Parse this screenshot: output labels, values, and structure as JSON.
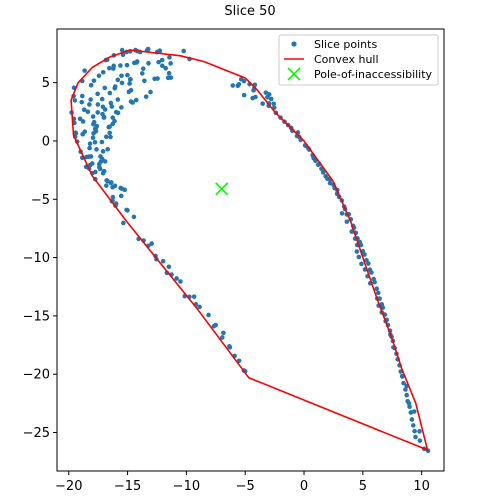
{
  "chart_data": {
    "type": "scatter",
    "title": "Slice 50",
    "xlabel": "",
    "ylabel": "",
    "xlim": [
      -21.0,
      11.9
    ],
    "ylim": [
      -28.3,
      9.6
    ],
    "xticks": [
      -20,
      -15,
      -10,
      -5,
      0,
      5,
      10
    ],
    "yticks": [
      5,
      0,
      -5,
      -10,
      -15,
      -20,
      -25
    ],
    "grid": false,
    "legend_position": "top-right",
    "legend": [
      "Slice points",
      "Convex hull",
      "Pole-of-inaccessibility"
    ],
    "colors": {
      "points": "#1f77b4",
      "hull": "#ff0000",
      "pole": "#00ff00"
    },
    "hull": [
      [
        -14.8,
        7.8
      ],
      [
        -10.5,
        7.3
      ],
      [
        -8.5,
        6.8
      ],
      [
        -5.0,
        5.4
      ],
      [
        -4.0,
        4.4
      ],
      [
        -2.5,
        2.5
      ],
      [
        0.0,
        0.0
      ],
      [
        2.5,
        -3.5
      ],
      [
        4.0,
        -7.0
      ],
      [
        5.0,
        -10.0
      ],
      [
        6.2,
        -13.5
      ],
      [
        7.5,
        -17.0
      ],
      [
        8.3,
        -19.5
      ],
      [
        9.5,
        -22.5
      ],
      [
        10.0,
        -24.5
      ],
      [
        10.5,
        -26.5
      ],
      [
        -4.7,
        -20.3
      ],
      [
        -9.0,
        -14.5
      ],
      [
        -15.0,
        -7.0
      ],
      [
        -18.0,
        -3.0
      ],
      [
        -19.6,
        0.5
      ],
      [
        -19.8,
        3.5
      ],
      [
        -19.2,
        5.0
      ],
      [
        -18.0,
        6.3
      ],
      [
        -16.5,
        7.2
      ],
      [
        -14.8,
        7.8
      ]
    ],
    "pole": [
      -7.0,
      -4.1
    ],
    "point_rows": [
      [
        [
          -13.25,
          7.85
        ],
        [
          -13.25,
          7.88
        ],
        [
          -14.33,
          7.79
        ],
        [
          -12.26,
          7.74
        ],
        [
          -15.46,
          7.79
        ],
        [
          -14.18,
          7.7
        ],
        [
          -13.34,
          7.78
        ],
        [
          -12.27,
          7.67
        ],
        [
          -13.94,
          7.63
        ],
        [
          -14.77,
          7.68
        ],
        [
          -15.08,
          7.63
        ],
        [
          -12.41,
          7.66
        ],
        [
          -12.5,
          7.61
        ],
        [
          -16.16,
          7.34
        ],
        [
          -15.39,
          7.39
        ],
        [
          -16.73,
          6.96
        ],
        [
          -16.84,
          6.94
        ]
      ],
      [
        [
          -12.06,
          6.94
        ],
        [
          -12.36,
          6.76
        ],
        [
          -13.22,
          6.66
        ],
        [
          -14.18,
          6.81
        ],
        [
          -15.05,
          6.5
        ],
        [
          -14.43,
          6.7
        ],
        [
          -15.61,
          6.47
        ],
        [
          -16.18,
          6.44
        ],
        [
          -17.07,
          5.89
        ],
        [
          -16.55,
          6.24
        ],
        [
          -14.24,
          6.73
        ],
        [
          -17.43,
          5.59
        ],
        [
          -16.21,
          6.21
        ],
        [
          -17.86,
          5.17
        ],
        [
          -18.1,
          4.78
        ]
      ],
      [
        [
          -11.32,
          5.43
        ],
        [
          -12.45,
          5.35
        ],
        [
          -12.7,
          5.33
        ],
        [
          -13.57,
          5.16
        ],
        [
          -14.75,
          5.28
        ],
        [
          -14.78,
          5.28
        ],
        [
          -14.83,
          4.93
        ],
        [
          -15.47,
          4.98
        ],
        [
          -16.05,
          4.67
        ],
        [
          -16.09,
          4.52
        ],
        [
          -16.51,
          4.11
        ],
        [
          -17.16,
          3.59
        ],
        [
          -17.53,
          3.13
        ],
        [
          -17.54,
          2.45
        ],
        [
          -17.93,
          2.09
        ],
        [
          -17.91,
          1.43
        ],
        [
          -17.76,
          1.02
        ],
        [
          -17.69,
          0.83
        ]
      ],
      [
        [
          -13.05,
          4.19
        ],
        [
          -13.42,
          3.8
        ],
        [
          -14.26,
          3.51
        ],
        [
          -14.57,
          3.3
        ],
        [
          -14.71,
          3.38
        ],
        [
          -15.53,
          2.88
        ],
        [
          -15.81,
          2.41
        ],
        [
          -16.11,
          1.7
        ],
        [
          -16.26,
          1.46
        ],
        [
          -16.6,
          1.18
        ],
        [
          -16.45,
          0.34
        ],
        [
          -16.81,
          0.36
        ],
        [
          -16.69,
          -0.71
        ],
        [
          -17.3,
          -1.33
        ],
        [
          -17.41,
          -1.99
        ],
        [
          -17.33,
          -2.39
        ]
      ],
      [
        [
          -11.44,
          7.17
        ],
        [
          -11.34,
          6.65
        ],
        [
          -12.05,
          6.45
        ],
        [
          -11.76,
          6.24
        ],
        [
          -13.67,
          6.2
        ],
        [
          -13.75,
          5.79
        ],
        [
          -15.01,
          5.65
        ],
        [
          -15.52,
          5.59
        ],
        [
          -15.83,
          5.24
        ],
        [
          -16.94,
          4.55
        ],
        [
          -17.55,
          4.04
        ],
        [
          -18.14,
          3.55
        ],
        [
          -18.25,
          3.13
        ],
        [
          -18.69,
          2.68
        ],
        [
          -19.04,
          1.9
        ],
        [
          -18.82,
          0.58
        ],
        [
          -19.4,
          0.65
        ],
        [
          -19.28,
          -0.06
        ],
        [
          -18.99,
          -0.92
        ],
        [
          -18.31,
          -1.35
        ]
      ],
      [
        [
          -14.71,
          4.35
        ],
        [
          -14.89,
          4.21
        ],
        [
          -15.83,
          3.55
        ],
        [
          -16.42,
          3.26
        ],
        [
          -16.34,
          2.95
        ],
        [
          -16.91,
          2.7
        ],
        [
          -17.01,
          2.0
        ],
        [
          -17.0,
          2.04
        ],
        [
          -17.61,
          1.27
        ],
        [
          -17.89,
          0.66
        ],
        [
          -17.77,
          -0.11
        ],
        [
          -18.19,
          -0.23
        ],
        [
          -18.11,
          -1.33
        ],
        [
          -18.0,
          -1.93
        ],
        [
          -18.2,
          -2.08
        ],
        [
          -17.4,
          -2.25
        ]
      ],
      [
        [
          -18.65,
          6.03
        ],
        [
          -18.85,
          5.14
        ],
        [
          -19.55,
          4.56
        ],
        [
          -19.59,
          3.84
        ],
        [
          -19.48,
          3.48
        ],
        [
          -19.76,
          2.44
        ],
        [
          -19.56,
          1.89
        ],
        [
          -19.52,
          1.55
        ],
        [
          -19.41,
          0.71
        ],
        [
          -19.45,
          0.36
        ],
        [
          -18.85,
          -1.44
        ],
        [
          -18.52,
          -2.22
        ],
        [
          -17.99,
          -2.76
        ],
        [
          -17.74,
          -3.28
        ]
      ],
      [
        [
          -15.97,
          2.47
        ],
        [
          -16.26,
          2.0
        ],
        [
          -16.53,
          1.22
        ],
        [
          -16.52,
          0.69
        ],
        [
          -17.18,
          -0.09
        ],
        [
          -17.08,
          -0.89
        ],
        [
          -17.16,
          -1.54
        ],
        [
          -16.91,
          -1.75
        ],
        [
          -16.99,
          -2.59
        ],
        [
          -16.78,
          -3.38
        ],
        [
          -16.69,
          -3.45
        ],
        [
          -16.27,
          -3.97
        ],
        [
          -16.25,
          -4.82
        ],
        [
          -16.34,
          -5.17
        ],
        [
          -15.97,
          -5.37
        ],
        [
          -16.03,
          -5.56
        ]
      ],
      [
        [
          -17.1,
          2.93
        ],
        [
          -17.13,
          2.31
        ],
        [
          -17.84,
          1.61
        ],
        [
          -17.71,
          1.06
        ],
        [
          -17.94,
          0.28
        ],
        [
          -17.64,
          -0.72
        ],
        [
          -17.28,
          -1.77
        ],
        [
          -17.08,
          -2.77
        ],
        [
          -16.42,
          -3.6
        ]
      ],
      [
        [
          -18.85,
          3.85
        ],
        [
          -18.9,
          3.33
        ],
        [
          -18.38,
          2.51
        ],
        [
          -18.78,
          1.67
        ],
        [
          -18.64,
          0.8
        ],
        [
          -18.23,
          -0.61
        ],
        [
          -18.49,
          -1.38
        ],
        [
          -18.27,
          -2.36
        ],
        [
          -17.74,
          -2.66
        ],
        [
          -16.81,
          -3.83
        ]
      ],
      [
        [
          -15.36,
          -7.03
        ],
        [
          -15.08,
          -5.91
        ],
        [
          -15.01,
          -5.95
        ],
        [
          -14.46,
          -6.51
        ],
        [
          -14.06,
          -8.4
        ],
        [
          -13.64,
          -8.54
        ],
        [
          -13.24,
          -8.99
        ],
        [
          -12.95,
          -8.8
        ],
        [
          -12.62,
          -9.86
        ],
        [
          -12.55,
          -10.14
        ],
        [
          -11.98,
          -10.31
        ],
        [
          -11.66,
          -11.31
        ],
        [
          -11.49,
          -10.79
        ],
        [
          -11.26,
          -11.46
        ],
        [
          -10.83,
          -11.79
        ],
        [
          -10.51,
          -12.05
        ],
        [
          -10.14,
          -13.31
        ],
        [
          -9.74,
          -13.36
        ],
        [
          -9.34,
          -13.35
        ],
        [
          -9.19,
          -14.01
        ],
        [
          -8.88,
          -14.23
        ],
        [
          -8.12,
          -14.92
        ],
        [
          -7.66,
          -15.88
        ],
        [
          -7.51,
          -15.78
        ],
        [
          -6.95,
          -16.85
        ],
        [
          -6.85,
          -16.46
        ],
        [
          -6.35,
          -17.61
        ],
        [
          -6.3,
          -17.7
        ],
        [
          -5.9,
          -18.43
        ],
        [
          -5.52,
          -18.85
        ],
        [
          -5.11,
          -19.68
        ],
        [
          -5.0,
          -19.75
        ]
      ],
      [
        [
          -16.07,
          -3.85
        ],
        [
          -16.38,
          -3.56
        ],
        [
          -15.59,
          -4.03
        ],
        [
          -15.24,
          -4.19
        ],
        [
          -15.49,
          -4.09
        ],
        [
          -15.54,
          -4.71
        ],
        [
          -16.28,
          -5.11
        ]
      ],
      [
        [
          -10.23,
          7.71
        ],
        [
          -9.73,
          7.03
        ],
        [
          -11.47,
          5.81
        ],
        [
          -11.55,
          5.41
        ],
        [
          -6.06,
          4.75
        ],
        [
          -5.34,
          5.29
        ],
        [
          -5.63,
          4.73
        ],
        [
          -5.1,
          5.13
        ],
        [
          -4.63,
          4.87
        ],
        [
          -4.29,
          4.34
        ],
        [
          -5.54,
          4.86
        ],
        [
          -4.18,
          4.81
        ],
        [
          -4.24,
          4.5
        ],
        [
          -3.25,
          4.14
        ],
        [
          -2.96,
          3.99
        ],
        [
          -5.09,
          3.93
        ],
        [
          -4.37,
          3.67
        ],
        [
          -4.13,
          3.77
        ],
        [
          -3.11,
          3.75
        ],
        [
          -2.79,
          3.6
        ],
        [
          -2.98,
          3.22
        ],
        [
          -3.52,
          3.2
        ],
        [
          -3.0,
          3.02
        ],
        [
          -2.58,
          3.19
        ],
        [
          -2.53,
          2.86
        ]
      ],
      [
        [
          -2.39,
          2.41
        ],
        [
          -2.0,
          2.0
        ],
        [
          -1.66,
          1.65
        ],
        [
          -1.35,
          1.36
        ],
        [
          -1.09,
          1.12
        ],
        [
          -0.99,
          0.87
        ],
        [
          -0.6,
          0.43
        ],
        [
          -0.52,
          0.73
        ],
        [
          -0.41,
          0.35
        ],
        [
          -0.28,
          0.09
        ],
        [
          0.09,
          -0.38
        ],
        [
          0.17,
          -0.42
        ],
        [
          0.37,
          -0.64
        ],
        [
          0.44,
          -0.74
        ],
        [
          0.73,
          -1.21
        ],
        [
          0.81,
          -1.42
        ],
        [
          0.82,
          -1.48
        ],
        [
          0.97,
          -1.7
        ],
        [
          1.29,
          -1.97
        ],
        [
          1.21,
          -2.04
        ],
        [
          1.48,
          -2.38
        ],
        [
          1.63,
          -2.69
        ],
        [
          1.84,
          -3.03
        ],
        [
          1.99,
          -3.24
        ],
        [
          2.21,
          -3.32
        ],
        [
          2.21,
          -3.62
        ],
        [
          2.49,
          -3.74
        ],
        [
          2.6,
          -4.04
        ],
        [
          2.81,
          -4.53
        ],
        [
          2.83,
          -4.21
        ],
        [
          2.99,
          -4.8
        ],
        [
          3.22,
          -5.11
        ],
        [
          3.41,
          -5.62
        ],
        [
          3.49,
          -5.83
        ],
        [
          3.63,
          -6.3
        ],
        [
          3.81,
          -6.29
        ],
        [
          3.98,
          -6.72
        ],
        [
          4.18,
          -7.28
        ],
        [
          4.25,
          -7.44
        ],
        [
          4.41,
          -7.88
        ],
        [
          4.55,
          -8.36
        ],
        [
          4.74,
          -8.66
        ],
        [
          4.84,
          -8.92
        ],
        [
          5.0,
          -9.46
        ],
        [
          5.14,
          -9.74
        ],
        [
          5.31,
          -10.23
        ],
        [
          5.47,
          -10.51
        ],
        [
          5.6,
          -11.04
        ],
        [
          5.73,
          -11.28
        ],
        [
          5.92,
          -11.84
        ],
        [
          6.0,
          -12.1
        ],
        [
          6.18,
          -12.67
        ],
        [
          6.31,
          -13.03
        ],
        [
          6.43,
          -13.52
        ],
        [
          6.61,
          -14.01
        ],
        [
          6.7,
          -14.29
        ],
        [
          6.87,
          -14.89
        ],
        [
          7.03,
          -15.34
        ],
        [
          7.14,
          -15.79
        ],
        [
          7.31,
          -16.27
        ],
        [
          7.44,
          -16.78
        ],
        [
          7.56,
          -17.14
        ],
        [
          7.71,
          -17.76
        ],
        [
          7.86,
          -18.25
        ],
        [
          7.96,
          -18.72
        ],
        [
          8.12,
          -19.24
        ],
        [
          8.22,
          -19.77
        ],
        [
          8.34,
          -20.17
        ],
        [
          8.46,
          -20.77
        ],
        [
          8.62,
          -21.31
        ],
        [
          8.73,
          -21.79
        ],
        [
          8.81,
          -22.32
        ],
        [
          8.97,
          -22.79
        ],
        [
          9.08,
          -23.28
        ],
        [
          9.17,
          -23.88
        ],
        [
          9.29,
          -24.39
        ],
        [
          9.4,
          -24.88
        ],
        [
          9.48,
          -25.39
        ]
      ],
      [
        [
          3.23,
          -6.21
        ],
        [
          3.64,
          -6.92
        ],
        [
          4.06,
          -7.77
        ],
        [
          4.34,
          -8.37
        ],
        [
          4.52,
          -8.92
        ],
        [
          4.49,
          -9.48
        ],
        [
          4.66,
          -9.95
        ],
        [
          4.88,
          -10.54
        ],
        [
          5.18,
          -11.02
        ],
        [
          5.4,
          -11.6
        ],
        [
          5.63,
          -12.2
        ],
        [
          6.22,
          -13.5
        ],
        [
          6.34,
          -14.12
        ],
        [
          6.61,
          -14.7
        ],
        [
          6.94,
          -15.45
        ],
        [
          7.34,
          -16.6
        ],
        [
          7.6,
          -17.7
        ],
        [
          8.36,
          -20.2
        ],
        [
          8.73,
          -21.0
        ],
        [
          8.93,
          -22.5
        ],
        [
          9.37,
          -23.2
        ],
        [
          9.82,
          -24.9
        ],
        [
          9.85,
          -25.7
        ],
        [
          10.22,
          -26.4
        ],
        [
          10.54,
          -26.56
        ]
      ]
    ]
  }
}
